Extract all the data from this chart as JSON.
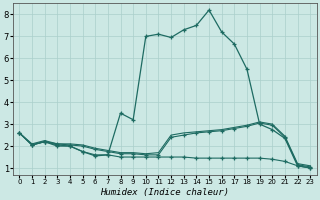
{
  "xlabel": "Humidex (Indice chaleur)",
  "bg_color": "#cce8e4",
  "grid_color": "#aacfcb",
  "line_color": "#1e6b62",
  "xlim": [
    -0.5,
    23.5
  ],
  "ylim": [
    0.7,
    8.5
  ],
  "xticks": [
    0,
    1,
    2,
    3,
    4,
    5,
    6,
    7,
    8,
    9,
    10,
    11,
    12,
    13,
    14,
    15,
    16,
    17,
    18,
    19,
    20,
    21,
    22,
    23
  ],
  "yticks": [
    1,
    2,
    3,
    4,
    5,
    6,
    7,
    8
  ],
  "curve1_x": [
    0,
    1,
    2,
    3,
    4,
    5,
    6,
    7,
    8,
    9,
    10,
    11,
    12,
    13,
    14,
    15,
    16,
    17,
    18,
    19,
    20,
    21,
    22,
    23
  ],
  "curve1_y": [
    2.6,
    2.05,
    2.2,
    2.05,
    2.0,
    1.75,
    1.6,
    1.6,
    1.5,
    1.5,
    1.5,
    1.5,
    1.5,
    1.5,
    1.45,
    1.45,
    1.45,
    1.45,
    1.45,
    1.45,
    1.4,
    1.3,
    1.1,
    1.0
  ],
  "curve2_x": [
    0,
    1,
    2,
    3,
    4,
    5,
    6,
    7,
    8,
    9,
    10,
    11,
    12,
    13,
    14,
    15,
    16,
    17,
    18,
    19,
    20,
    21,
    22,
    23
  ],
  "curve2_y": [
    2.6,
    2.05,
    2.2,
    2.1,
    2.05,
    2.0,
    1.85,
    1.75,
    1.65,
    1.65,
    1.6,
    1.6,
    2.4,
    2.5,
    2.6,
    2.65,
    2.7,
    2.8,
    2.9,
    3.05,
    2.95,
    2.4,
    1.15,
    1.05
  ],
  "curve3_x": [
    0,
    1,
    2,
    3,
    4,
    5,
    6,
    7,
    8,
    9,
    10,
    11,
    12,
    13,
    14,
    15,
    16,
    17,
    18,
    19,
    20,
    21,
    22,
    23
  ],
  "curve3_y": [
    2.6,
    2.1,
    2.25,
    2.1,
    2.1,
    2.05,
    1.9,
    1.8,
    1.7,
    1.7,
    1.65,
    1.7,
    2.5,
    2.6,
    2.65,
    2.7,
    2.75,
    2.85,
    2.95,
    3.1,
    3.0,
    2.45,
    1.2,
    1.1
  ],
  "curve4_x": [
    0,
    1,
    2,
    3,
    4,
    5,
    6,
    7,
    8,
    9,
    10,
    11,
    12,
    13,
    14,
    15,
    16,
    17,
    18,
    19,
    20,
    21,
    22,
    23
  ],
  "curve4_y": [
    2.6,
    2.05,
    2.2,
    2.0,
    2.0,
    1.75,
    1.55,
    1.6,
    3.5,
    3.2,
    7.0,
    7.1,
    6.95,
    7.3,
    7.5,
    8.2,
    7.2,
    6.65,
    5.5,
    3.0,
    2.75,
    2.35,
    1.1,
    1.0
  ]
}
